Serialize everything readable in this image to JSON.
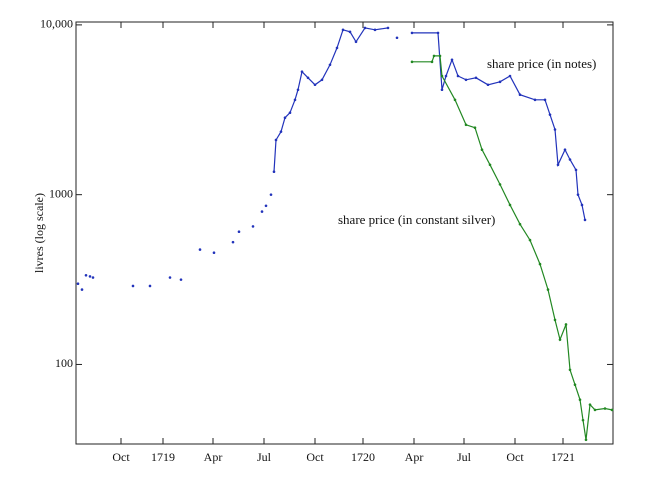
{
  "chart_data": {
    "type": "line",
    "yscale": "log",
    "ylabel": "livres (log scale)",
    "xlim": [
      1718.565,
      1721.25
    ],
    "xticks": [
      {
        "value": 1718.79,
        "label": "Oct"
      },
      1719,
      {
        "value": 1719.25,
        "label": "Apr"
      },
      {
        "value": 1719.505,
        "label": "Jul"
      },
      {
        "value": 1719.76,
        "label": "Oct"
      },
      1720,
      {
        "value": 1720.255,
        "label": "Apr"
      },
      {
        "value": 1720.505,
        "label": "Jul"
      },
      {
        "value": 1720.76,
        "label": "Oct"
      },
      1721
    ],
    "ylim": [
      34,
      10400
    ],
    "yticks": [
      100,
      1000,
      {
        "value": 10000,
        "label": "10,000"
      }
    ],
    "series": [
      {
        "name": "share price (in notes)",
        "color": "#2233bb",
        "x": [
          1718.575,
          null,
          1718.595,
          null,
          1718.615,
          null,
          1718.635,
          null,
          1718.65,
          null,
          1718.85,
          null,
          1718.935,
          null,
          1719.035,
          null,
          1719.09,
          null,
          1719.185,
          null,
          1719.255,
          null,
          1719.35,
          null,
          1719.38,
          null,
          1719.45,
          null,
          1719.495,
          null,
          1719.515,
          null,
          1719.54,
          null,
          1719.555,
          1719.565,
          1719.59,
          1719.61,
          1719.635,
          1719.66,
          1719.675,
          1719.695,
          1719.725,
          1719.76,
          1719.795,
          1719.835,
          1719.87,
          1719.9,
          1719.935,
          1719.965,
          1720.01,
          1720.06,
          1720.125,
          null,
          1720.17,
          null,
          1720.245,
          1720.375,
          1720.395,
          1720.415,
          1720.445,
          1720.475,
          1720.515,
          1720.565,
          1720.625,
          1720.685,
          1720.735,
          1720.785,
          1720.86,
          1720.91,
          1720.935,
          1720.96,
          1720.975,
          1721.01,
          1721.035,
          1721.065,
          1721.075,
          1721.095,
          1721.11
        ],
        "values": [
          299,
          null,
          276,
          null,
          335,
          null,
          330,
          null,
          325,
          null,
          290,
          null,
          290,
          null,
          325,
          null,
          316,
          null,
          475,
          null,
          455,
          null,
          525,
          null,
          605,
          null,
          650,
          null,
          795,
          null,
          860,
          null,
          1000,
          null,
          1365,
          2100,
          2350,
          2840,
          3040,
          3620,
          4150,
          5300,
          4880,
          4440,
          4750,
          5820,
          7320,
          9350,
          9100,
          7950,
          9600,
          9350,
          9600,
          null,
          8400,
          null,
          8970,
          8970,
          4150,
          5000,
          6230,
          5000,
          4750,
          4880,
          4440,
          4620,
          5000,
          3880,
          3620,
          3620,
          2960,
          2420,
          1500,
          1840,
          1610,
          1400,
          1000,
          870,
          710
        ]
      },
      {
        "name": "share price (in constant silver)",
        "color": "#228822",
        "x": [
          1720.245,
          1720.345,
          1720.355,
          1720.385,
          1720.395,
          1720.46,
          1720.515,
          1720.56,
          1720.595,
          1720.635,
          1720.685,
          1720.735,
          1720.785,
          1720.835,
          1720.885,
          1720.925,
          1720.96,
          1720.985,
          1721.015,
          1721.035,
          1721.06,
          1721.085,
          1721.1,
          1721.115,
          1721.135,
          1721.16,
          1721.21,
          1721.245
        ],
        "values": [
          6060,
          6060,
          6570,
          6570,
          5000,
          3620,
          2580,
          2480,
          1840,
          1500,
          1150,
          870,
          670,
          540,
          390,
          276,
          183,
          140,
          172,
          93,
          76,
          62,
          47,
          36,
          58,
          54,
          55,
          54
        ]
      }
    ]
  }
}
